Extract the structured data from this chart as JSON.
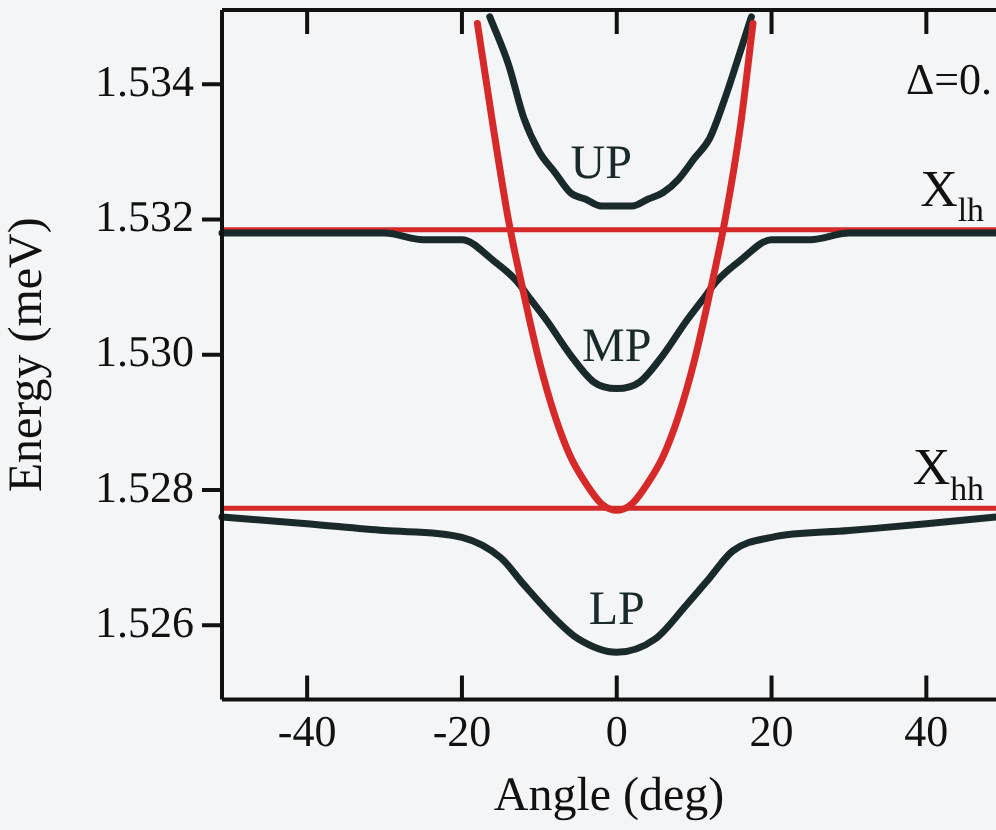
{
  "chart_data": {
    "type": "line",
    "xlabel": "Angle (deg)",
    "ylabel": "Energy (meV)",
    "xlim": [
      -51,
      49
    ],
    "ylim": [
      1.5249,
      1.5351
    ],
    "xticks": [
      -40,
      -20,
      0,
      20,
      40
    ],
    "yticks": [
      {
        "value": 1.526,
        "label": "1.526"
      },
      {
        "value": 1.528,
        "label": "1.528"
      },
      {
        "value": 1.53,
        "label": "1.530"
      },
      {
        "value": 1.532,
        "label": "1.532"
      },
      {
        "value": 1.534,
        "label": "1.534"
      }
    ],
    "grid": false,
    "legend": false,
    "marker": "none",
    "line_style": "solid",
    "series": [
      {
        "color": "#d62a2a",
        "x": [
          -18,
          -16,
          -14,
          -12,
          -10,
          -8,
          -6,
          -4,
          -2,
          0,
          2,
          4,
          6,
          8,
          10,
          12,
          14,
          16,
          17.6
        ],
        "values": [
          1.5349,
          1.5334,
          1.532,
          1.5309,
          1.5299,
          1.5291,
          1.5285,
          1.5281,
          1.5278,
          1.5277,
          1.5278,
          1.5281,
          1.5285,
          1.5291,
          1.5299,
          1.5309,
          1.532,
          1.5334,
          1.5349
        ]
      },
      {
        "name": "UP",
        "color": "#1a2a2a",
        "x": [
          -16.4,
          -14,
          -12,
          -10,
          -8,
          -6,
          -4,
          -2,
          0,
          2,
          4,
          6,
          8,
          10,
          12,
          14,
          16,
          17.4
        ],
        "values": [
          1.535,
          1.5343,
          1.5335,
          1.533,
          1.5327,
          1.5324,
          1.5323,
          1.5322,
          1.5322,
          1.5322,
          1.5323,
          1.5324,
          1.5326,
          1.5329,
          1.5332,
          1.5338,
          1.5345,
          1.535
        ]
      },
      {
        "name": "MP",
        "color": "#1a2a2a",
        "x": [
          -51,
          -40,
          -30,
          -25,
          -20,
          -16,
          -13,
          -11,
          -9,
          -6,
          -3,
          0,
          3,
          6,
          9,
          11,
          13,
          16,
          20,
          25,
          30,
          40,
          49
        ],
        "values": [
          1.5318,
          1.5318,
          1.5318,
          1.5317,
          1.5317,
          1.5314,
          1.5311,
          1.5308,
          1.5305,
          1.53,
          1.5296,
          1.5295,
          1.5296,
          1.53,
          1.5305,
          1.5308,
          1.5311,
          1.5314,
          1.5317,
          1.5317,
          1.5318,
          1.5318,
          1.5318
        ]
      },
      {
        "name": "LP",
        "color": "#1a2a2a",
        "x": [
          -51,
          -40,
          -30,
          -20,
          -15,
          -12,
          -8,
          -5,
          0,
          5,
          9,
          12,
          15,
          20,
          30,
          40,
          49
        ],
        "values": [
          1.5276,
          1.5275,
          1.5274,
          1.5273,
          1.527,
          1.5266,
          1.5261,
          1.5258,
          1.5256,
          1.5258,
          1.5263,
          1.5267,
          1.5271,
          1.5273,
          1.5274,
          1.5275,
          1.5276
        ]
      }
    ],
    "ref_lines": [
      {
        "axis": "y",
        "value": 1.53185,
        "label": "X$_{lh}$",
        "color": "#d62a2a"
      },
      {
        "axis": "y",
        "value": 1.52773,
        "label": "X$_{hh}$",
        "color": "#d62a2a"
      }
    ],
    "annotations": [
      "Δ=0."
    ]
  }
}
